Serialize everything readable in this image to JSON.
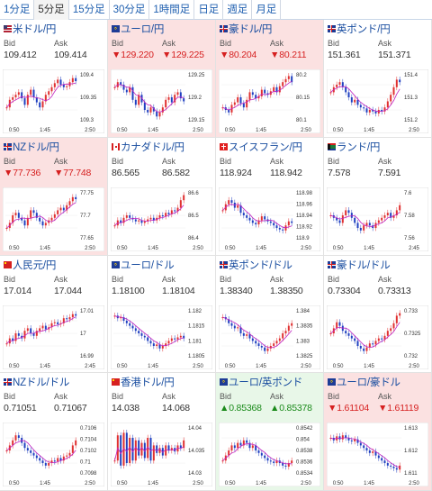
{
  "tabs": [
    "1分足",
    "5分足",
    "15分足",
    "30分足",
    "1時間足",
    "日足",
    "週足",
    "月足"
  ],
  "active_tab": 1,
  "labels": {
    "bid": "Bid",
    "ask": "Ask"
  },
  "pairs": [
    {
      "name": "米ドル/円",
      "flag": "us",
      "dir": "none",
      "bid": "109.412",
      "ask": "109.414",
      "y_labels": [
        "109.4",
        "109.35",
        "109.3"
      ],
      "x_labels": [
        "0:50",
        "1:45",
        "2:50"
      ],
      "trend": [
        0.3,
        0.45,
        0.5,
        0.55,
        0.6,
        0.48,
        0.35,
        0.55,
        0.65,
        0.5,
        0.4,
        0.3,
        0.42,
        0.55,
        0.62,
        0.7,
        0.78,
        0.85,
        0.75,
        0.7,
        0.72,
        0.8,
        0.88,
        0.82
      ]
    },
    {
      "name": "ユーロ/円",
      "flag": "eu",
      "dir": "down",
      "bid": "▼129.220",
      "ask": "▼129.225",
      "y_labels": [
        "129.25",
        "129.2",
        "129.15"
      ],
      "x_labels": [
        "0:50",
        "1:45",
        "2:50"
      ],
      "trend": [
        0.7,
        0.8,
        0.75,
        0.65,
        0.6,
        0.7,
        0.45,
        0.35,
        0.55,
        0.4,
        0.25,
        0.2,
        0.3,
        0.22,
        0.12,
        0.2,
        0.3,
        0.45,
        0.5,
        0.4,
        0.55,
        0.6,
        0.48,
        0.42
      ]
    },
    {
      "name": "豪ドル/円",
      "flag": "au",
      "dir": "down",
      "bid": "▼80.204",
      "ask": "▼80.211",
      "y_labels": [
        "80.2",
        "80.15",
        "80.1"
      ],
      "x_labels": [
        "0:50",
        "1:45",
        "2:50"
      ],
      "trend": [
        0.3,
        0.25,
        0.2,
        0.35,
        0.4,
        0.5,
        0.38,
        0.3,
        0.45,
        0.6,
        0.55,
        0.48,
        0.52,
        0.65,
        0.58,
        0.55,
        0.62,
        0.7,
        0.6,
        0.72,
        0.8,
        0.86,
        0.92,
        0.8
      ]
    },
    {
      "name": "英ポンド/円",
      "flag": "gb",
      "dir": "none",
      "bid": "151.361",
      "ask": "151.371",
      "y_labels": [
        "151.4",
        "151.3",
        "151.2"
      ],
      "x_labels": [
        "0:50",
        "1:45",
        "2:50"
      ],
      "trend": [
        0.6,
        0.7,
        0.75,
        0.8,
        0.7,
        0.6,
        0.5,
        0.4,
        0.45,
        0.35,
        0.3,
        0.28,
        0.2,
        0.25,
        0.22,
        0.18,
        0.25,
        0.22,
        0.3,
        0.42,
        0.55,
        0.7,
        0.85,
        0.8
      ]
    },
    {
      "name": "NZドル/円",
      "flag": "nz",
      "dir": "down",
      "bid": "▼77.736",
      "ask": "▼77.748",
      "y_labels": [
        "77.75",
        "77.7",
        "77.65"
      ],
      "x_labels": [
        "0:50",
        "1:45",
        "2:50"
      ],
      "trend": [
        0.25,
        0.35,
        0.5,
        0.55,
        0.45,
        0.4,
        0.3,
        0.45,
        0.6,
        0.55,
        0.45,
        0.38,
        0.3,
        0.35,
        0.4,
        0.45,
        0.52,
        0.6,
        0.65,
        0.6,
        0.7,
        0.78,
        0.86,
        0.82
      ]
    },
    {
      "name": "カナダドル/円",
      "flag": "ca",
      "dir": "none",
      "bid": "86.565",
      "ask": "86.582",
      "y_labels": [
        "86.6",
        "86.5",
        "86.4"
      ],
      "x_labels": [
        "0:50",
        "1:45",
        "2:50"
      ],
      "trend": [
        0.3,
        0.4,
        0.35,
        0.45,
        0.5,
        0.45,
        0.42,
        0.38,
        0.4,
        0.35,
        0.38,
        0.42,
        0.45,
        0.4,
        0.45,
        0.5,
        0.48,
        0.55,
        0.52,
        0.6,
        0.58,
        0.65,
        0.8,
        0.9
      ]
    },
    {
      "name": "スイスフラン/円",
      "flag": "ch",
      "dir": "none",
      "bid": "118.924",
      "ask": "118.942",
      "y_labels": [
        "118.98",
        "118.96",
        "118.94",
        "118.92",
        "118.9"
      ],
      "x_labels": [
        "0:50",
        "1:45",
        "2:50"
      ],
      "trend": [
        0.6,
        0.72,
        0.8,
        0.75,
        0.65,
        0.7,
        0.55,
        0.5,
        0.45,
        0.4,
        0.35,
        0.32,
        0.4,
        0.48,
        0.42,
        0.38,
        0.35,
        0.3,
        0.25,
        0.22,
        0.2,
        0.3,
        0.38,
        0.35
      ]
    },
    {
      "name": "ランド/円",
      "flag": "za",
      "dir": "none",
      "bid": "7.578",
      "ask": "7.591",
      "y_labels": [
        "7.6",
        "7.58",
        "7.56"
      ],
      "x_labels": [
        "0:50",
        "1:45",
        "2:45"
      ],
      "trend": [
        0.5,
        0.45,
        0.4,
        0.35,
        0.5,
        0.6,
        0.55,
        0.45,
        0.35,
        0.25,
        0.2,
        0.3,
        0.35,
        0.3,
        0.25,
        0.35,
        0.4,
        0.45,
        0.5,
        0.55,
        0.45,
        0.5,
        0.6,
        0.7
      ]
    },
    {
      "name": "人民元/円",
      "flag": "cn",
      "dir": "none",
      "bid": "17.014",
      "ask": "17.044",
      "y_labels": [
        "17.01",
        "17",
        "16.99"
      ],
      "x_labels": [
        "0:50",
        "1:45",
        "2:45"
      ],
      "trend": [
        0.3,
        0.4,
        0.35,
        0.5,
        0.45,
        0.4,
        0.55,
        0.6,
        0.5,
        0.45,
        0.55,
        0.6,
        0.65,
        0.58,
        0.62,
        0.7,
        0.72,
        0.68,
        0.7,
        0.8,
        0.78,
        0.82,
        0.88,
        0.85
      ]
    },
    {
      "name": "ユーロ/ドル",
      "flag": "eu",
      "dir": "none",
      "bid": "1.18100",
      "ask": "1.18104",
      "y_labels": [
        "1.182",
        "1.1815",
        "1.181",
        "1.1805"
      ],
      "x_labels": [
        "0:50",
        "1:45",
        "2:50"
      ],
      "trend": [
        0.85,
        0.8,
        0.82,
        0.75,
        0.7,
        0.65,
        0.6,
        0.55,
        0.5,
        0.45,
        0.42,
        0.35,
        0.3,
        0.25,
        0.28,
        0.2,
        0.25,
        0.3,
        0.35,
        0.4,
        0.38,
        0.42,
        0.45,
        0.4
      ]
    },
    {
      "name": "英ポンド/ドル",
      "flag": "gb",
      "dir": "none",
      "bid": "1.38340",
      "ask": "1.38350",
      "y_labels": [
        "1.384",
        "1.3835",
        "1.383",
        "1.3825"
      ],
      "x_labels": [
        "0:50",
        "1:45",
        "2:50"
      ],
      "trend": [
        0.82,
        0.78,
        0.7,
        0.65,
        0.6,
        0.62,
        0.5,
        0.45,
        0.48,
        0.4,
        0.35,
        0.3,
        0.25,
        0.22,
        0.15,
        0.2,
        0.25,
        0.3,
        0.35,
        0.4,
        0.5,
        0.55,
        0.65,
        0.7
      ]
    },
    {
      "name": "豪ドル/ドル",
      "flag": "au",
      "dir": "none",
      "bid": "0.73304",
      "ask": "0.73313",
      "y_labels": [
        "0.733",
        "0.7325",
        "0.732"
      ],
      "x_labels": [
        "0:50",
        "1:45",
        "2:50"
      ],
      "trend": [
        0.5,
        0.6,
        0.72,
        0.65,
        0.55,
        0.5,
        0.45,
        0.4,
        0.35,
        0.25,
        0.2,
        0.15,
        0.22,
        0.3,
        0.28,
        0.35,
        0.4,
        0.38,
        0.45,
        0.55,
        0.6,
        0.7,
        0.85,
        0.9
      ]
    },
    {
      "name": "NZドル/ドル",
      "flag": "nz",
      "dir": "none",
      "bid": "0.71051",
      "ask": "0.71067",
      "y_labels": [
        "0.7106",
        "0.7104",
        "0.7102",
        "0.71",
        "0.7098"
      ],
      "x_labels": [
        "0:50",
        "1:45",
        "2:50"
      ],
      "trend": [
        0.5,
        0.6,
        0.7,
        0.8,
        0.75,
        0.65,
        0.55,
        0.5,
        0.45,
        0.4,
        0.35,
        0.3,
        0.25,
        0.2,
        0.25,
        0.3,
        0.28,
        0.35,
        0.3,
        0.38,
        0.4,
        0.45,
        0.6,
        0.7
      ]
    },
    {
      "name": "香港ドル/円",
      "flag": "hk",
      "dir": "none",
      "bid": "14.038",
      "ask": "14.068",
      "y_labels": [
        "14.04",
        "14.035",
        "14.03"
      ],
      "x_labels": [
        "0:50",
        "1:45",
        "2:50"
      ],
      "trend": [
        0.3,
        0.8,
        0.2,
        0.85,
        0.25,
        0.75,
        0.3,
        0.7,
        0.4,
        0.65,
        0.35,
        0.75,
        0.3,
        0.6,
        0.45,
        0.55,
        0.4,
        0.6,
        0.5,
        0.55,
        0.48,
        0.6,
        0.55,
        0.7
      ]
    },
    {
      "name": "ユーロ/英ポンド",
      "flag": "eu",
      "dir": "up",
      "bid": "▲0.85368",
      "ask": "▲0.85378",
      "y_labels": [
        "0.8542",
        "0.854",
        "0.8538",
        "0.8536",
        "0.8534"
      ],
      "x_labels": [
        "0:50",
        "1:45",
        "2:50"
      ],
      "trend": [
        0.3,
        0.4,
        0.5,
        0.6,
        0.55,
        0.65,
        0.6,
        0.7,
        0.65,
        0.55,
        0.6,
        0.5,
        0.45,
        0.4,
        0.35,
        0.3,
        0.28,
        0.25,
        0.3,
        0.25,
        0.2,
        0.18,
        0.25,
        0.3
      ]
    },
    {
      "name": "ユーロ/豪ドル",
      "flag": "eu",
      "dir": "down",
      "bid": "▼1.61104",
      "ask": "▼1.61119",
      "y_labels": [
        "1.613",
        "1.612",
        "1.611"
      ],
      "x_labels": [
        "0:50",
        "1:45",
        "2:50"
      ],
      "trend": [
        0.75,
        0.7,
        0.78,
        0.72,
        0.8,
        0.75,
        0.7,
        0.68,
        0.72,
        0.65,
        0.6,
        0.55,
        0.5,
        0.45,
        0.48,
        0.4,
        0.35,
        0.3,
        0.25,
        0.2,
        0.18,
        0.15,
        0.12,
        0.2
      ]
    }
  ]
}
